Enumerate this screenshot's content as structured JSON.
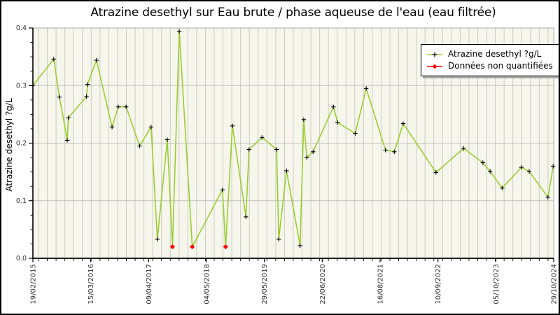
{
  "window": {
    "title": "Atrazine desethyl sur Eau brute / phase aqueuse de l'eau (eau filtrée)"
  },
  "colors": {
    "line": "#9ACD32",
    "marker": "#000000",
    "non_quantified": "#FF0000",
    "plot_bg": "#F6F6EC",
    "grid_vertical": "#CCCCC4",
    "grid_horizontal": "#C0C0C0",
    "axis": "#000000",
    "frame": "#AAAAAA",
    "tick_label": "#333333"
  },
  "chart_data": {
    "type": "line",
    "title": "Atrazine desethyl sur Eau brute / phase aqueuse de l'eau (eau filtrée)",
    "xlabel": "",
    "ylabel": "Atrazine desethyl ?g/L",
    "ylim": [
      0.0,
      0.4
    ],
    "grid": "on",
    "y_major_ticks": [
      "0.0",
      "0.1",
      "0.2",
      "0.3",
      "0.4"
    ],
    "y_minor_step": 0.025,
    "x_tick_labels": [
      "19/02/2015",
      "15/03/2016",
      "09/04/2017",
      "04/05/2018",
      "29/05/2019",
      "22/06/2020",
      "16/08/2021",
      "10/09/2022",
      "05/10/2023",
      "29/10/2024"
    ],
    "legend": {
      "position": "top-right",
      "entries": [
        {
          "label": "Atrazine desethyl ?g/L",
          "marker": "plus",
          "line_color": "#9ACD32",
          "marker_color": "#000000"
        },
        {
          "label": "Données non quantifiées",
          "marker": "diamond",
          "line_color": "#FF0000",
          "marker_color": "#FF0000"
        }
      ]
    },
    "series_name": "Atrazine desethyl ?g/L",
    "points_note": "x = fraction of time axis from 19/02/2015 (0.0) to 29/10/2024 (1.0); y in ?g/L; q=false means 'Donnée non quantifiée' (red diamond, ~limit of quantification 0.02)",
    "points": [
      {
        "x": 0.0,
        "y": 0.3,
        "q": true
      },
      {
        "x": 0.04,
        "y": 0.346,
        "q": true
      },
      {
        "x": 0.051,
        "y": 0.28,
        "q": true
      },
      {
        "x": 0.066,
        "y": 0.205,
        "q": true
      },
      {
        "x": 0.068,
        "y": 0.244,
        "q": true
      },
      {
        "x": 0.103,
        "y": 0.281,
        "q": true
      },
      {
        "x": 0.105,
        "y": 0.302,
        "q": true
      },
      {
        "x": 0.122,
        "y": 0.344,
        "q": true
      },
      {
        "x": 0.152,
        "y": 0.228,
        "q": true
      },
      {
        "x": 0.164,
        "y": 0.263,
        "q": true
      },
      {
        "x": 0.179,
        "y": 0.263,
        "q": true
      },
      {
        "x": 0.205,
        "y": 0.195,
        "q": true
      },
      {
        "x": 0.227,
        "y": 0.228,
        "q": true
      },
      {
        "x": 0.239,
        "y": 0.033,
        "q": true
      },
      {
        "x": 0.258,
        "y": 0.206,
        "q": true
      },
      {
        "x": 0.268,
        "y": 0.02,
        "q": false
      },
      {
        "x": 0.281,
        "y": 0.394,
        "q": true
      },
      {
        "x": 0.306,
        "y": 0.02,
        "q": false
      },
      {
        "x": 0.364,
        "y": 0.119,
        "q": true
      },
      {
        "x": 0.37,
        "y": 0.02,
        "q": false
      },
      {
        "x": 0.383,
        "y": 0.23,
        "q": true
      },
      {
        "x": 0.409,
        "y": 0.072,
        "q": true
      },
      {
        "x": 0.415,
        "y": 0.189,
        "q": true
      },
      {
        "x": 0.44,
        "y": 0.21,
        "q": true
      },
      {
        "x": 0.468,
        "y": 0.189,
        "q": true
      },
      {
        "x": 0.472,
        "y": 0.033,
        "q": true
      },
      {
        "x": 0.487,
        "y": 0.152,
        "q": true
      },
      {
        "x": 0.513,
        "y": 0.022,
        "q": true
      },
      {
        "x": 0.52,
        "y": 0.241,
        "q": true
      },
      {
        "x": 0.526,
        "y": 0.175,
        "q": true
      },
      {
        "x": 0.538,
        "y": 0.185,
        "q": true
      },
      {
        "x": 0.577,
        "y": 0.263,
        "q": true
      },
      {
        "x": 0.585,
        "y": 0.236,
        "q": true
      },
      {
        "x": 0.619,
        "y": 0.217,
        "q": true
      },
      {
        "x": 0.64,
        "y": 0.295,
        "q": true
      },
      {
        "x": 0.677,
        "y": 0.188,
        "q": true
      },
      {
        "x": 0.694,
        "y": 0.185,
        "q": true
      },
      {
        "x": 0.711,
        "y": 0.234,
        "q": true
      },
      {
        "x": 0.774,
        "y": 0.149,
        "q": true
      },
      {
        "x": 0.827,
        "y": 0.191,
        "q": true
      },
      {
        "x": 0.864,
        "y": 0.166,
        "q": true
      },
      {
        "x": 0.878,
        "y": 0.151,
        "q": true
      },
      {
        "x": 0.901,
        "y": 0.122,
        "q": true
      },
      {
        "x": 0.938,
        "y": 0.158,
        "q": true
      },
      {
        "x": 0.953,
        "y": 0.151,
        "q": true
      },
      {
        "x": 0.989,
        "y": 0.106,
        "q": true
      },
      {
        "x": 0.999,
        "y": 0.16,
        "q": true
      }
    ]
  }
}
